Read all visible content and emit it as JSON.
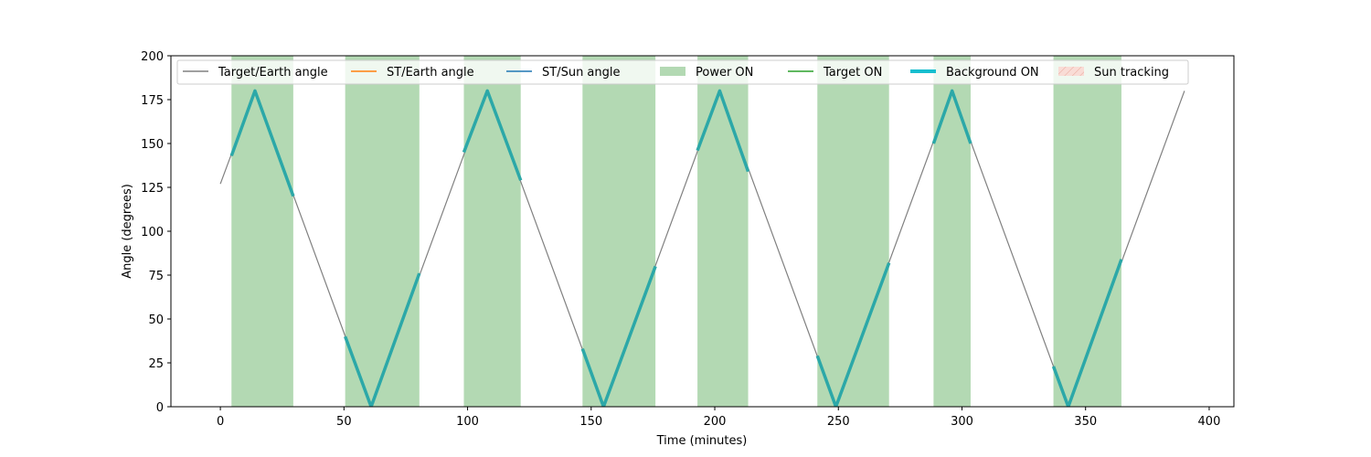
{
  "chart_data": {
    "type": "line",
    "title": "",
    "xlabel": "Time (minutes)",
    "ylabel": "Angle (degrees)",
    "xlim": [
      -20,
      410
    ],
    "ylim": [
      0,
      200
    ],
    "xticks": [
      0,
      50,
      100,
      150,
      200,
      250,
      300,
      350,
      400
    ],
    "yticks": [
      0,
      25,
      50,
      75,
      100,
      125,
      150,
      175,
      200
    ],
    "grid": false,
    "legend_position": "top",
    "legend": [
      {
        "label": "Target/Earth angle",
        "kind": "line",
        "color": "#808080"
      },
      {
        "label": "ST/Earth angle",
        "kind": "line",
        "color": "#ff7f0e"
      },
      {
        "label": "ST/Sun angle",
        "kind": "line",
        "color": "#1f77b4"
      },
      {
        "label": "Power ON",
        "kind": "patch",
        "color": "#b3d9b3"
      },
      {
        "label": "Target ON",
        "kind": "line",
        "color": "#2ca02c"
      },
      {
        "label": "Background ON",
        "kind": "thickline",
        "color": "#17becf"
      },
      {
        "label": "Sun tracking",
        "kind": "hatchpatch",
        "color": "#f4cccc"
      }
    ],
    "series": [
      {
        "name": "Target/Earth angle",
        "color": "#808080",
        "x": [
          0,
          14,
          61,
          108,
          155,
          202,
          249,
          296,
          343,
          390
        ],
        "y": [
          127,
          180,
          0,
          180,
          0,
          180,
          0,
          180,
          0,
          180
        ]
      },
      {
        "name": "Background ON",
        "color": "#2ca8a8",
        "segments": [
          {
            "x": [
              4.5,
              14,
              29.5
            ],
            "y": [
              143,
              180,
              120
            ]
          },
          {
            "x": [
              50.5,
              61,
              80.5
            ],
            "y": [
              40,
              0,
              76
            ]
          },
          {
            "x": [
              98.5,
              108,
              121.5
            ],
            "y": [
              145,
              180,
              129
            ]
          },
          {
            "x": [
              146.5,
              155,
              176
            ],
            "y": [
              33,
              0,
              80
            ]
          },
          {
            "x": [
              193,
              202,
              213.5
            ],
            "y": [
              146,
              180,
              134
            ]
          },
          {
            "x": [
              241.5,
              249,
              270.5
            ],
            "y": [
              29,
              0,
              82
            ]
          },
          {
            "x": [
              288.5,
              296,
              303.5
            ],
            "y": [
              150,
              180,
              150
            ]
          },
          {
            "x": [
              337,
              343,
              364.5
            ],
            "y": [
              23,
              0,
              84
            ]
          }
        ]
      }
    ],
    "power_on_intervals": [
      [
        4.5,
        29.5
      ],
      [
        50.5,
        80.5
      ],
      [
        98.5,
        121.5
      ],
      [
        146.5,
        176
      ],
      [
        193,
        213.5
      ],
      [
        241.5,
        270.5
      ],
      [
        288.5,
        303.5
      ],
      [
        337,
        364.5
      ]
    ]
  }
}
